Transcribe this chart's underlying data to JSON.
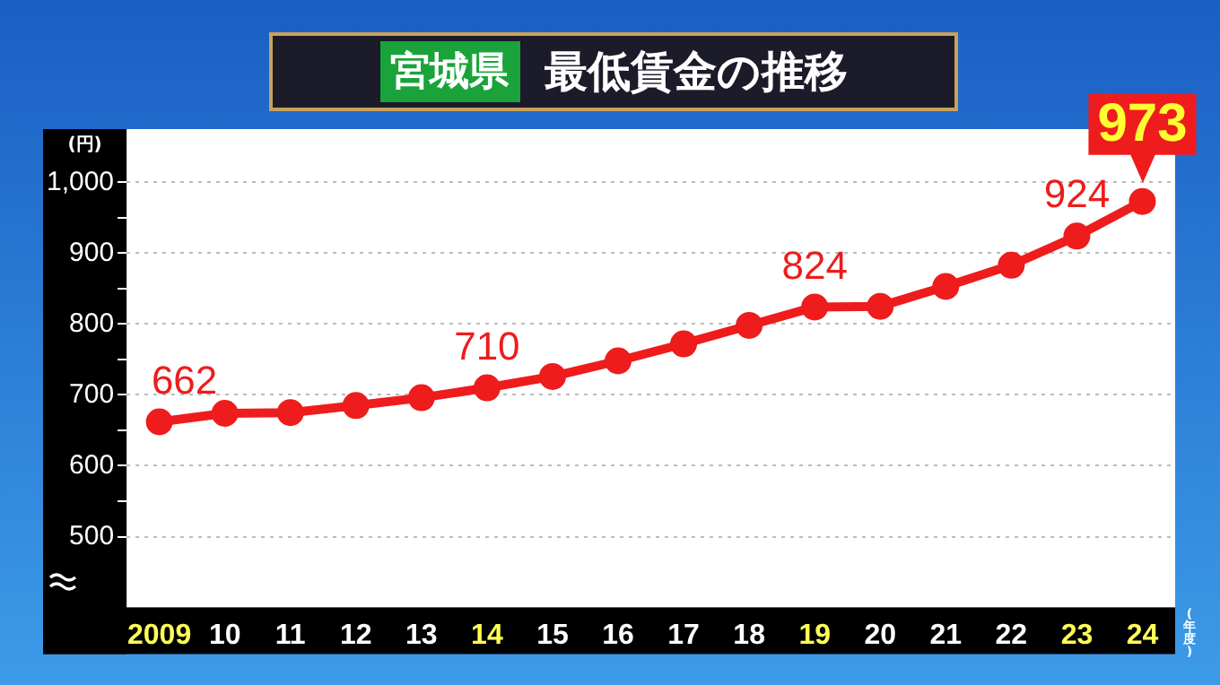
{
  "chart_data": {
    "type": "line",
    "title": "宮城県",
    "subtitle": "最低賃金の推移",
    "ylabel": "(円)",
    "xlabel": "(年度)",
    "categories": [
      "2009",
      "10",
      "11",
      "12",
      "13",
      "14",
      "15",
      "16",
      "17",
      "18",
      "19",
      "20",
      "21",
      "22",
      "23",
      "24"
    ],
    "series": [
      {
        "color": "#ee1c1c",
        "values": [
          662,
          674,
          675,
          685,
          696,
          710,
          726,
          748,
          772,
          798,
          824,
          825,
          853,
          883,
          924,
          973
        ],
        "value_labels": [
          "662",
          null,
          null,
          null,
          null,
          "710",
          null,
          null,
          null,
          null,
          "824",
          null,
          null,
          null,
          "924",
          "973"
        ]
      }
    ],
    "ylim": [
      400,
      1075
    ],
    "yticks": [
      {
        "value": 500,
        "label": "500"
      },
      {
        "value": 550,
        "label": null
      },
      {
        "value": 600,
        "label": "600"
      },
      {
        "value": 650,
        "label": null
      },
      {
        "value": 700,
        "label": "700"
      },
      {
        "value": 750,
        "label": null
      },
      {
        "value": 800,
        "label": "800"
      },
      {
        "value": 850,
        "label": null
      },
      {
        "value": 900,
        "label": "900"
      },
      {
        "value": 950,
        "label": null
      },
      {
        "value": 1000,
        "label": "1,000"
      }
    ],
    "grid": "y",
    "legend": false,
    "marker": "circle",
    "line_style": "solid"
  }
}
